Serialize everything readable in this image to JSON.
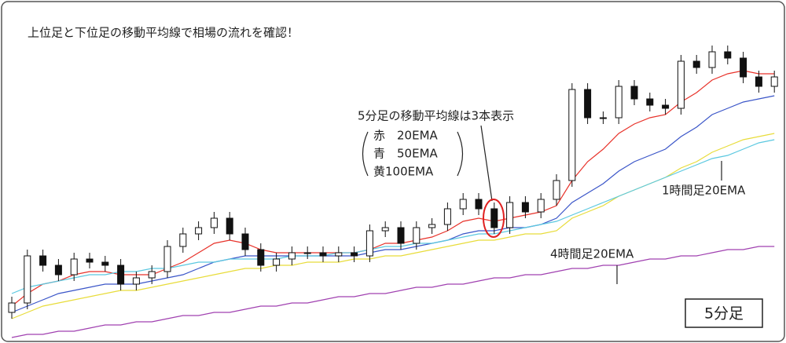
{
  "chart_data": {
    "type": "candlestick",
    "title": "上位足と下位足の移動平均線で相場の流れを確認！",
    "annotation": "5分足の移動平均線は3本表示",
    "timeframe": "5分足",
    "ylim": [
      0,
      100
    ],
    "open": [
      8,
      11,
      26,
      23,
      20,
      25,
      24,
      23,
      17,
      19,
      21,
      29,
      33,
      35,
      38,
      33,
      28,
      23,
      25,
      27,
      27,
      26,
      27,
      26,
      34,
      35,
      30,
      35,
      36,
      41,
      44,
      41,
      35,
      43,
      40,
      44,
      50,
      79,
      70,
      70,
      80,
      76,
      74,
      73,
      88,
      86,
      91,
      89,
      83,
      80
    ],
    "high": [
      13,
      28,
      28,
      25,
      27,
      27,
      26,
      25,
      21,
      23,
      31,
      35,
      37,
      40,
      40,
      35,
      30,
      27,
      29,
      29,
      29,
      29,
      29,
      36,
      37,
      37,
      37,
      38,
      43,
      46,
      46,
      43,
      45,
      45,
      46,
      52,
      81,
      81,
      72,
      82,
      82,
      78,
      76,
      90,
      90,
      93,
      93,
      91,
      85,
      85
    ],
    "low": [
      6,
      9,
      21,
      18,
      18,
      22,
      21,
      15,
      15,
      17,
      19,
      27,
      31,
      33,
      31,
      26,
      21,
      21,
      23,
      25,
      24,
      24,
      24,
      24,
      32,
      28,
      28,
      33,
      34,
      39,
      39,
      33,
      33,
      38,
      38,
      42,
      48,
      68,
      68,
      68,
      74,
      72,
      71,
      71,
      84,
      84,
      87,
      81,
      78,
      78
    ],
    "close": [
      11,
      26,
      23,
      20,
      25,
      24,
      23,
      17,
      19,
      21,
      29,
      33,
      35,
      38,
      33,
      28,
      23,
      25,
      27,
      27,
      26,
      27,
      26,
      34,
      35,
      30,
      35,
      36,
      41,
      44,
      41,
      35,
      43,
      40,
      44,
      50,
      79,
      70,
      70,
      80,
      76,
      74,
      73,
      88,
      86,
      91,
      89,
      83,
      80,
      83
    ],
    "series": [
      {
        "name": "赤　20EMA",
        "color": "#e8322a",
        "values": [
          10,
          14,
          17,
          18,
          20,
          21,
          21,
          20,
          20,
          20,
          22,
          24,
          27,
          30,
          31,
          30,
          28,
          27,
          27,
          27,
          27,
          27,
          27,
          28,
          30,
          30,
          31,
          32,
          34,
          37,
          38,
          37,
          38,
          39,
          40,
          42,
          50,
          56,
          60,
          65,
          68,
          70,
          71,
          75,
          78,
          82,
          84,
          85,
          84,
          84
        ]
      },
      {
        "name": "青　50EMA",
        "color": "#3a55c8",
        "values": [
          8,
          10,
          12,
          14,
          15,
          16,
          17,
          17,
          17,
          18,
          19,
          20,
          22,
          24,
          25,
          26,
          26,
          26,
          26,
          26,
          26,
          26,
          26,
          27,
          28,
          28,
          29,
          30,
          31,
          33,
          34,
          34,
          35,
          35,
          36,
          38,
          43,
          46,
          49,
          53,
          56,
          58,
          60,
          64,
          67,
          71,
          73,
          75,
          76,
          77
        ]
      },
      {
        "name": "黄100EMA",
        "color": "#e8dc3a",
        "values": [
          6,
          8,
          10,
          11,
          12,
          13,
          14,
          15,
          15,
          16,
          17,
          18,
          19,
          20,
          21,
          22,
          22,
          23,
          23,
          24,
          24,
          24,
          25,
          25,
          26,
          26,
          27,
          28,
          29,
          30,
          31,
          31,
          32,
          33,
          33,
          34,
          38,
          40,
          42,
          45,
          47,
          49,
          51,
          54,
          56,
          59,
          61,
          63,
          64,
          65
        ]
      },
      {
        "name": "1時間足20EMA",
        "color": "#5bc8e0",
        "values": [
          14,
          16,
          17,
          18,
          19,
          20,
          20,
          21,
          21,
          22,
          22,
          23,
          24,
          24,
          25,
          25,
          25,
          25,
          26,
          26,
          26,
          27,
          27,
          28,
          29,
          29,
          30,
          30,
          31,
          32,
          33,
          33,
          34,
          35,
          36,
          37,
          39,
          41,
          43,
          45,
          47,
          49,
          51,
          53,
          55,
          57,
          58,
          60,
          62,
          63
        ]
      },
      {
        "name": "4時間足20EMA",
        "color": "#a040b0",
        "values": [
          0,
          1,
          1,
          2,
          2,
          3,
          4,
          4,
          5,
          5,
          6,
          7,
          7,
          8,
          8,
          9,
          10,
          10,
          11,
          11,
          12,
          13,
          13,
          14,
          14,
          15,
          16,
          16,
          17,
          17,
          18,
          19,
          19,
          20,
          20,
          21,
          22,
          22,
          23,
          23,
          24,
          25,
          25,
          26,
          26,
          27,
          28,
          28,
          29,
          29
        ]
      }
    ]
  }
}
